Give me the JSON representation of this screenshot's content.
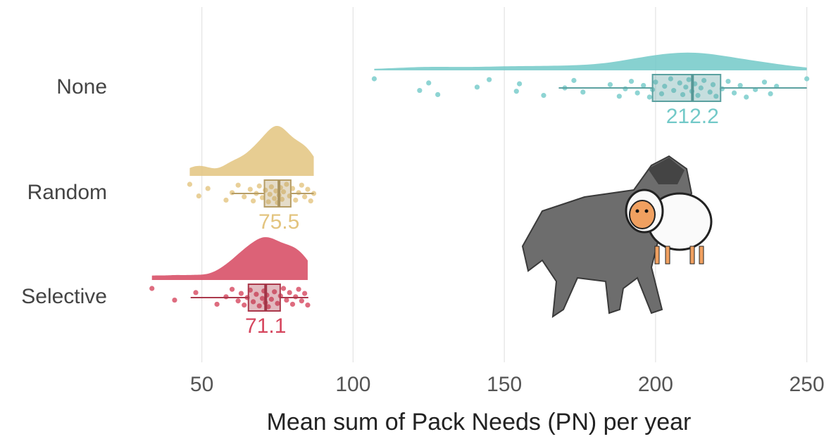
{
  "chart_data": {
    "type": "raincloud",
    "xlabel": "Mean sum of Pack Needs (PN) per year",
    "xlim": [
      31,
      258
    ],
    "xticks": [
      50,
      100,
      150,
      200,
      250
    ],
    "grid": true,
    "series": [
      {
        "name": "None",
        "color": "#72c9c8",
        "q1": 199,
        "median": 212.2,
        "q3": 221.5,
        "whisker_low": 168,
        "whisker_high": 250,
        "points": [
          107,
          122,
          125,
          128,
          141,
          145,
          154,
          155,
          163,
          170,
          173,
          176,
          185,
          188,
          190,
          192,
          194,
          196,
          198,
          199,
          200,
          202,
          203,
          205,
          206,
          208,
          209,
          210,
          211,
          212,
          213,
          214,
          215,
          216,
          218,
          219,
          220,
          222,
          224,
          226,
          228,
          230,
          233,
          236,
          238,
          240,
          250
        ]
      },
      {
        "name": "Random",
        "color": "#e3c47f",
        "q1": 70.7,
        "median": 75.5,
        "q3": 79.4,
        "whisker_low": 59.8,
        "whisker_high": 87,
        "points": [
          46,
          49,
          52,
          58,
          60,
          62,
          64,
          66,
          67,
          68,
          69,
          70,
          71,
          72,
          72.5,
          73,
          74,
          74.5,
          75,
          75.5,
          76,
          76.5,
          77,
          78,
          79,
          80,
          81,
          82,
          83,
          84,
          85,
          86,
          87
        ]
      },
      {
        "name": "Selective",
        "color": "#d6475f",
        "q1": 65.4,
        "median": 71.1,
        "q3": 75.9,
        "whisker_low": 46.3,
        "whisker_high": 85.2,
        "points": [
          33.5,
          41,
          48,
          55,
          58,
          60,
          62,
          63,
          64,
          65,
          66,
          67,
          68,
          69,
          70,
          70.5,
          71,
          71.5,
          72,
          73,
          74,
          75,
          76,
          77,
          78,
          79,
          80,
          81,
          82,
          83,
          84,
          85
        ]
      }
    ]
  }
}
